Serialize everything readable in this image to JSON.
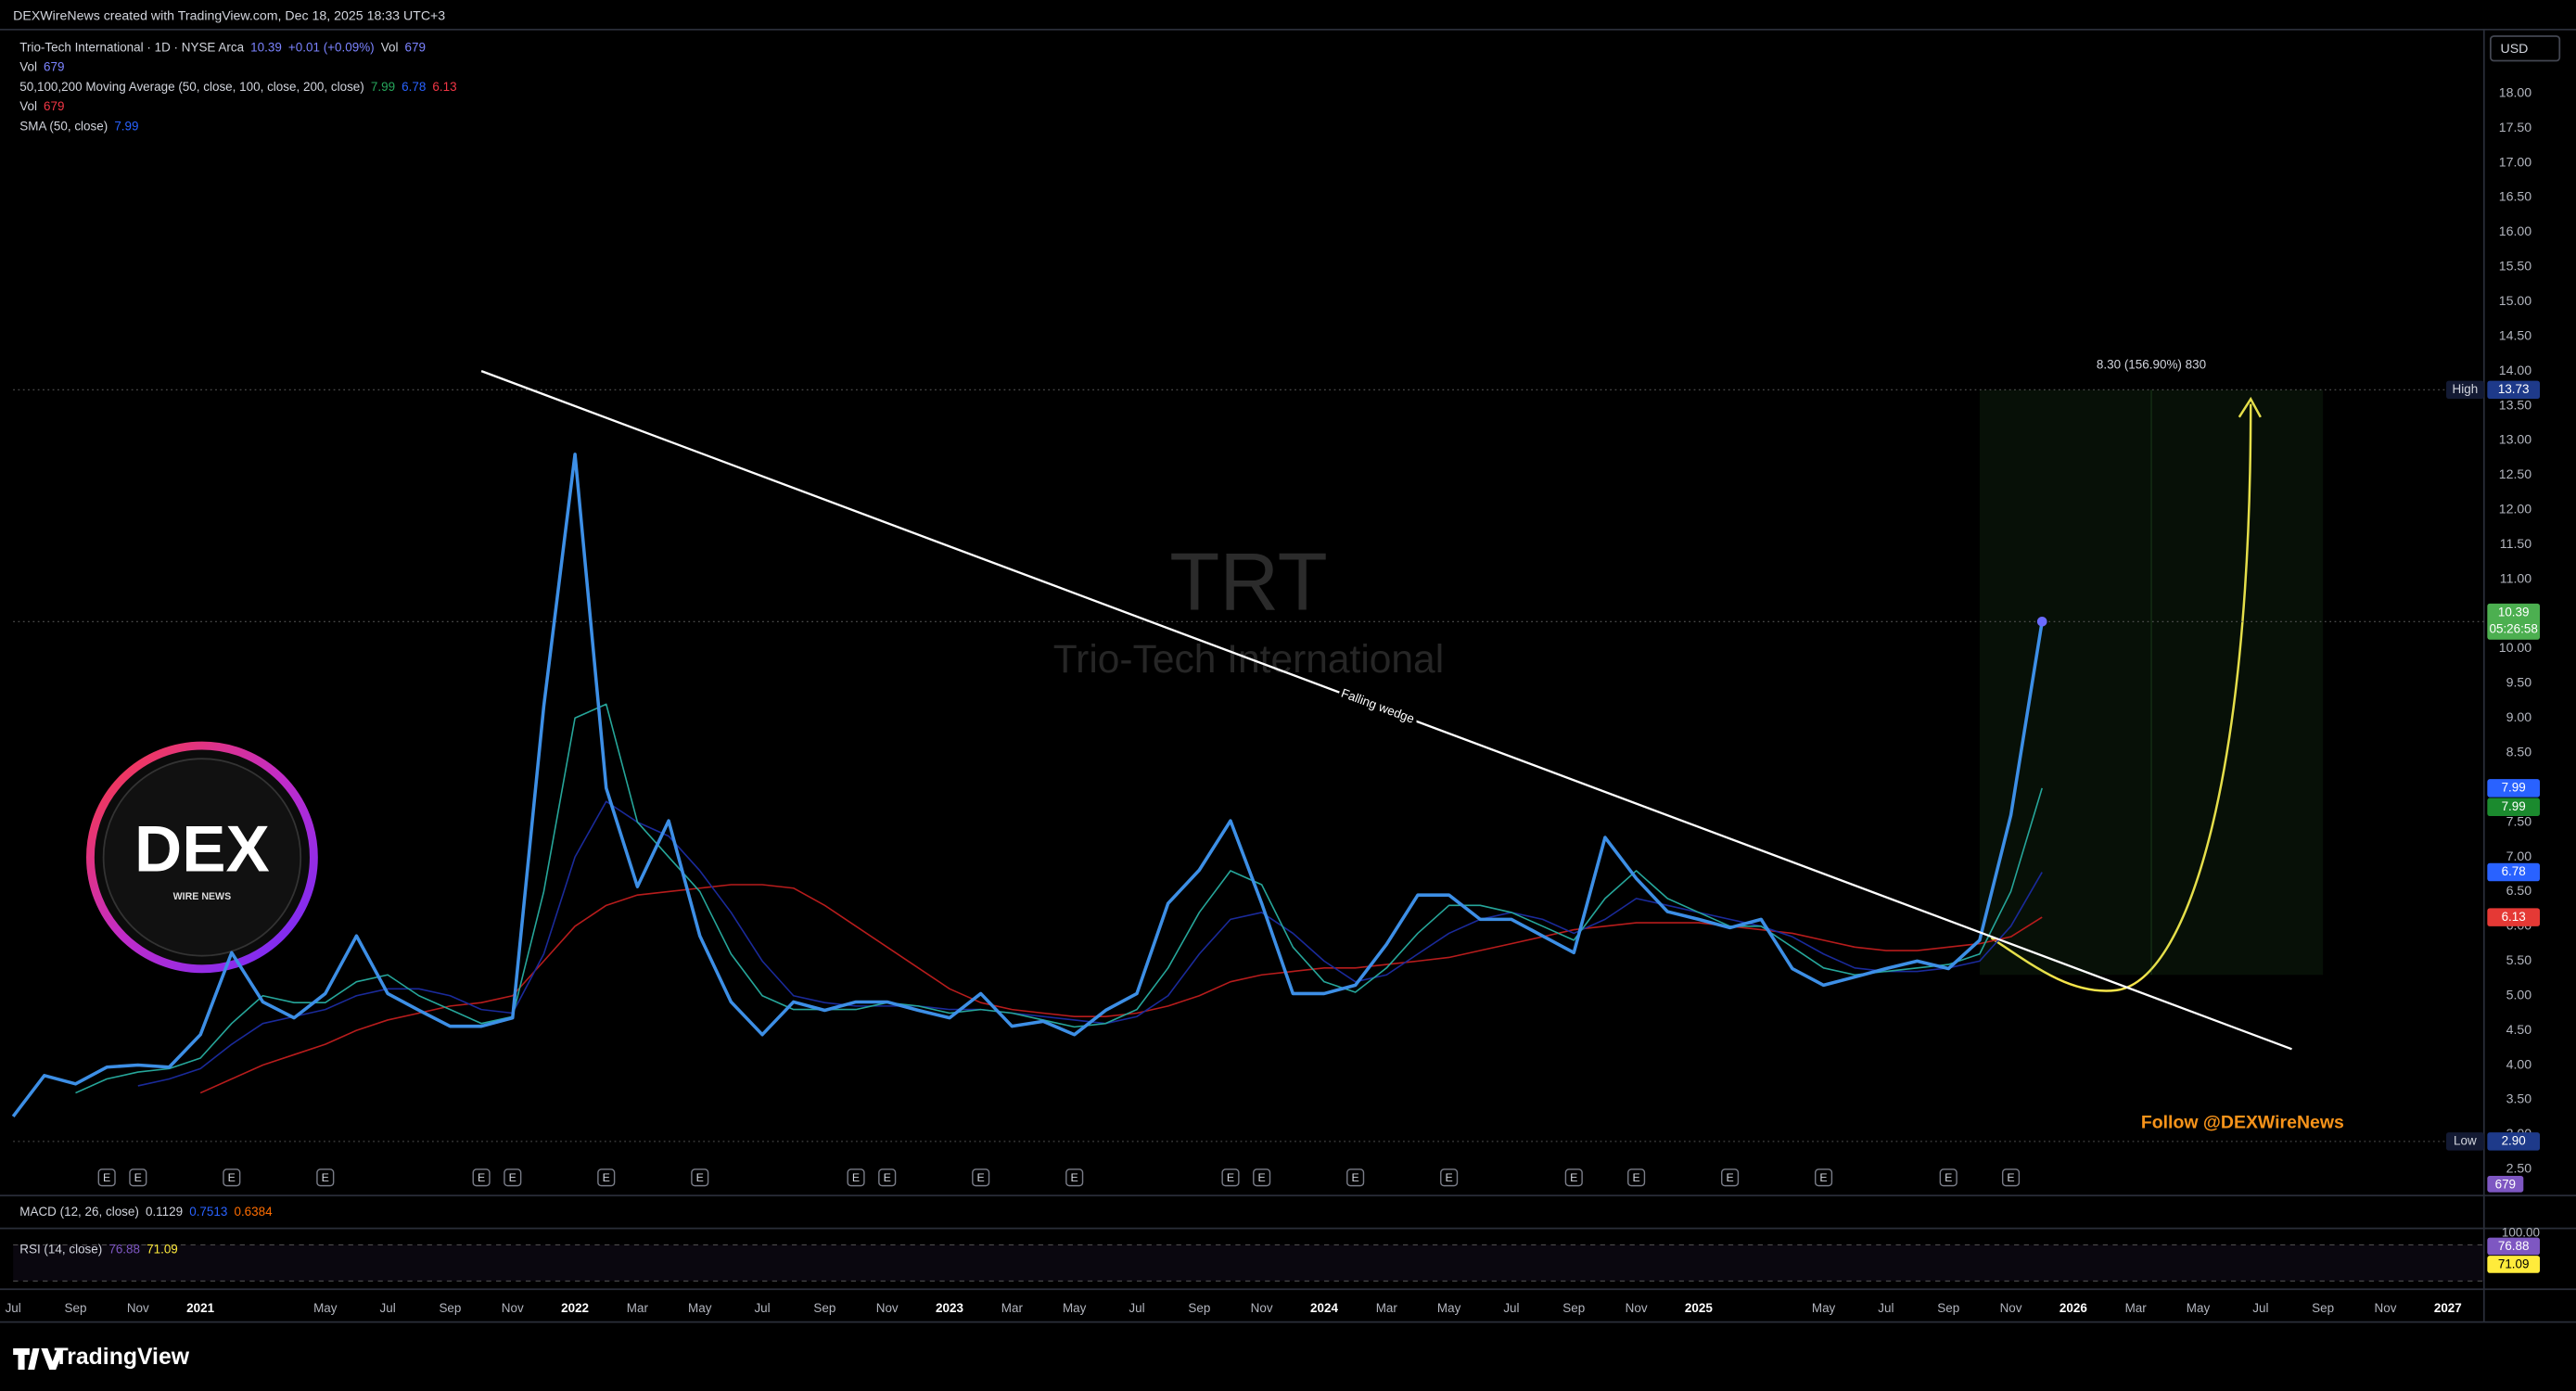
{
  "header": {
    "attribution": "DEXWireNews created with TradingView.com, Dec 18, 2025 18:33 UTC+3",
    "currency": "USD",
    "watermark_symbol": "TRT",
    "watermark_name": "Trio-Tech International",
    "follow": "Follow @DEXWireNews",
    "logo": {
      "title": "DEX",
      "subtitle": "WIRE NEWS"
    },
    "brand": "TradingView"
  },
  "legend": [
    [
      {
        "text": "Trio-Tech International · 1D · NYSE Arca",
        "color": "#d1d4dc"
      },
      {
        "text": "10.39",
        "color": "#7b83ff"
      },
      {
        "text": "+0.01 (+0.09%)",
        "color": "#7b83ff"
      },
      {
        "text": "Vol",
        "color": "#d1d4dc"
      },
      {
        "text": "679",
        "color": "#7b83ff"
      }
    ],
    [
      {
        "text": "Vol",
        "color": "#d1d4dc"
      },
      {
        "text": "679",
        "color": "#7b83ff"
      }
    ],
    [
      {
        "text": "50,100,200 Moving Average (50, close, 100, close, 200, close)",
        "color": "#d1d4dc"
      },
      {
        "text": "7.99",
        "color": "#26a65b"
      },
      {
        "text": "6.78",
        "color": "#2962ff"
      },
      {
        "text": "6.13",
        "color": "#f23645"
      }
    ],
    [
      {
        "text": "Vol",
        "color": "#d1d4dc"
      },
      {
        "text": "679",
        "color": "#f23645"
      }
    ],
    [
      {
        "text": "SMA (50, close)",
        "color": "#d1d4dc"
      },
      {
        "text": "7.99",
        "color": "#2962ff"
      }
    ]
  ],
  "macd_legend": [
    {
      "text": "MACD (12, 26, close)",
      "color": "#d1d4dc"
    },
    {
      "text": "0.1129",
      "color": "#d1d4dc"
    },
    {
      "text": "0.7513",
      "color": "#2962ff"
    },
    {
      "text": "0.6384",
      "color": "#ff6d00"
    }
  ],
  "rsi_legend": [
    {
      "text": "RSI (14, close)",
      "color": "#d1d4dc"
    },
    {
      "text": "76.88",
      "color": "#7e57c2"
    },
    {
      "text": "71.09",
      "color": "#ffeb3b"
    }
  ],
  "chart_data": {
    "type": "line",
    "x": [
      "2020-07",
      "2020-08",
      "2020-09",
      "2020-10",
      "2020-11",
      "2020-12",
      "2021-01",
      "2021-02",
      "2021-03",
      "2021-04",
      "2021-05",
      "2021-06",
      "2021-07",
      "2021-08",
      "2021-09",
      "2021-10",
      "2021-11",
      "2021-12",
      "2022-01",
      "2022-02",
      "2022-03",
      "2022-04",
      "2022-05",
      "2022-06",
      "2022-07",
      "2022-08",
      "2022-09",
      "2022-10",
      "2022-11",
      "2022-12",
      "2023-01",
      "2023-02",
      "2023-03",
      "2023-04",
      "2023-05",
      "2023-06",
      "2023-07",
      "2023-08",
      "2023-09",
      "2023-10",
      "2023-11",
      "2023-12",
      "2024-01",
      "2024-02",
      "2024-03",
      "2024-04",
      "2024-05",
      "2024-06",
      "2024-07",
      "2024-08",
      "2024-09",
      "2024-10",
      "2024-11",
      "2024-12",
      "2025-01",
      "2025-02",
      "2025-03",
      "2025-04",
      "2025-05",
      "2025-06",
      "2025-07",
      "2025-08",
      "2025-09",
      "2025-10",
      "2025-11",
      "2025-12"
    ],
    "series": [
      {
        "color": "#3d8fe6",
        "values": [
          3.26,
          3.85,
          3.73,
          3.97,
          4.0,
          3.97,
          4.44,
          5.62,
          4.91,
          4.68,
          5.03,
          5.86,
          5.03,
          4.79,
          4.56,
          4.56,
          4.68,
          9.17,
          12.8,
          7.99,
          6.57,
          7.52,
          5.86,
          4.91,
          4.44,
          4.91,
          4.79,
          4.91,
          4.91,
          4.79,
          4.68,
          5.03,
          4.56,
          4.63,
          4.44,
          4.79,
          5.03,
          6.33,
          6.81,
          7.52,
          6.33,
          5.03,
          5.03,
          5.15,
          5.74,
          6.45,
          6.45,
          6.1,
          6.1,
          5.86,
          5.62,
          7.28,
          6.69,
          6.21,
          6.1,
          5.98,
          6.1,
          5.39,
          5.15,
          5.27,
          5.39,
          5.5,
          5.39,
          5.8,
          7.6,
          10.39
        ]
      },
      {
        "color": "#26a69a",
        "values": [
          null,
          null,
          3.6,
          3.8,
          3.9,
          3.95,
          4.1,
          4.6,
          5.0,
          4.9,
          4.9,
          5.2,
          5.3,
          5.0,
          4.8,
          4.6,
          4.7,
          6.5,
          9.0,
          9.2,
          7.5,
          7.0,
          6.5,
          5.6,
          5.0,
          4.8,
          4.8,
          4.8,
          4.9,
          4.85,
          4.75,
          4.8,
          4.75,
          4.65,
          4.55,
          4.6,
          4.8,
          5.4,
          6.2,
          6.8,
          6.6,
          5.7,
          5.2,
          5.05,
          5.4,
          5.9,
          6.3,
          6.3,
          6.2,
          6.0,
          5.8,
          6.4,
          6.8,
          6.4,
          6.2,
          6.0,
          6.0,
          5.7,
          5.4,
          5.3,
          5.35,
          5.4,
          5.45,
          5.6,
          6.5,
          7.99
        ]
      },
      {
        "color": "#1a2a9a",
        "values": [
          null,
          null,
          null,
          null,
          3.7,
          3.8,
          3.95,
          4.3,
          4.6,
          4.7,
          4.8,
          5.0,
          5.1,
          5.1,
          5.0,
          4.8,
          4.75,
          5.6,
          7.0,
          7.8,
          7.5,
          7.3,
          6.8,
          6.2,
          5.5,
          5.0,
          4.9,
          4.85,
          4.85,
          4.85,
          4.8,
          4.8,
          4.75,
          4.7,
          4.65,
          4.6,
          4.7,
          5.0,
          5.6,
          6.1,
          6.2,
          5.9,
          5.5,
          5.2,
          5.3,
          5.6,
          5.9,
          6.1,
          6.2,
          6.1,
          5.9,
          6.1,
          6.4,
          6.3,
          6.2,
          6.1,
          6.0,
          5.85,
          5.6,
          5.4,
          5.35,
          5.35,
          5.4,
          5.5,
          6.0,
          6.78
        ]
      },
      {
        "color": "#b71c1c",
        "values": [
          null,
          null,
          null,
          null,
          null,
          null,
          3.6,
          3.8,
          4.0,
          4.15,
          4.3,
          4.5,
          4.65,
          4.75,
          4.85,
          4.9,
          5.0,
          5.5,
          6.0,
          6.3,
          6.45,
          6.5,
          6.55,
          6.6,
          6.6,
          6.55,
          6.3,
          6.0,
          5.7,
          5.4,
          5.1,
          4.9,
          4.8,
          4.75,
          4.7,
          4.7,
          4.75,
          4.85,
          5.0,
          5.2,
          5.3,
          5.35,
          5.4,
          5.4,
          5.45,
          5.5,
          5.55,
          5.65,
          5.75,
          5.85,
          5.95,
          6.0,
          6.05,
          6.05,
          6.05,
          6.0,
          5.95,
          5.9,
          5.8,
          5.7,
          5.65,
          5.65,
          5.7,
          5.75,
          5.85,
          6.13
        ]
      }
    ],
    "xlim": [
      "2020-07",
      "2027-02"
    ],
    "xticks": [
      {
        "value": "2020-07",
        "label": "Jul"
      },
      {
        "value": "2020-09",
        "label": "Sep"
      },
      {
        "value": "2020-11",
        "label": "Nov"
      },
      {
        "value": "2021-01",
        "label": "2021"
      },
      {
        "value": "2021-05",
        "label": "May"
      },
      {
        "value": "2021-07",
        "label": "Jul"
      },
      {
        "value": "2021-09",
        "label": "Sep"
      },
      {
        "value": "2021-11",
        "label": "Nov"
      },
      {
        "value": "2022-01",
        "label": "2022"
      },
      {
        "value": "2022-03",
        "label": "Mar"
      },
      {
        "value": "2022-05",
        "label": "May"
      },
      {
        "value": "2022-07",
        "label": "Jul"
      },
      {
        "value": "2022-09",
        "label": "Sep"
      },
      {
        "value": "2022-11",
        "label": "Nov"
      },
      {
        "value": "2023-01",
        "label": "2023"
      },
      {
        "value": "2023-03",
        "label": "Mar"
      },
      {
        "value": "2023-05",
        "label": "May"
      },
      {
        "value": "2023-07",
        "label": "Jul"
      },
      {
        "value": "2023-09",
        "label": "Sep"
      },
      {
        "value": "2023-11",
        "label": "Nov"
      },
      {
        "value": "2024-01",
        "label": "2024"
      },
      {
        "value": "2024-03",
        "label": "Mar"
      },
      {
        "value": "2024-05",
        "label": "May"
      },
      {
        "value": "2024-07",
        "label": "Jul"
      },
      {
        "value": "2024-09",
        "label": "Sep"
      },
      {
        "value": "2024-11",
        "label": "Nov"
      },
      {
        "value": "2025-01",
        "label": "2025"
      },
      {
        "value": "2025-05",
        "label": "May"
      },
      {
        "value": "2025-07",
        "label": "Jul"
      },
      {
        "value": "2025-09",
        "label": "Sep"
      },
      {
        "value": "2025-11",
        "label": "Nov"
      },
      {
        "value": "2026-01",
        "label": "2026"
      },
      {
        "value": "2026-03",
        "label": "Mar"
      },
      {
        "value": "2026-05",
        "label": "May"
      },
      {
        "value": "2026-07",
        "label": "Jul"
      },
      {
        "value": "2026-09",
        "label": "Sep"
      },
      {
        "value": "2026-11",
        "label": "Nov"
      },
      {
        "value": "2027-01",
        "label": "2027"
      }
    ],
    "ylim": [
      2.12,
      18.92
    ],
    "yticks": [
      {
        "value": 2.5,
        "label": "2.50"
      },
      {
        "value": 3,
        "label": "3.00"
      },
      {
        "value": 3.5,
        "label": "3.50"
      },
      {
        "value": 4,
        "label": "4.00"
      },
      {
        "value": 4.5,
        "label": "4.50"
      },
      {
        "value": 5,
        "label": "5.00"
      },
      {
        "value": 5.5,
        "label": "5.50"
      },
      {
        "value": 6,
        "label": "6.00"
      },
      {
        "value": 6.5,
        "label": "6.50"
      },
      {
        "value": 7,
        "label": "7.00"
      },
      {
        "value": 7.5,
        "label": "7.50"
      },
      {
        "value": 8,
        "label": "8.00"
      },
      {
        "value": 8.5,
        "label": "8.50"
      },
      {
        "value": 9,
        "label": "9.00"
      },
      {
        "value": 9.5,
        "label": "9.50"
      },
      {
        "value": 10,
        "label": "10.00"
      },
      {
        "value": 10.5,
        "label": "10.50"
      },
      {
        "value": 11,
        "label": "11.00"
      },
      {
        "value": 11.5,
        "label": "11.50"
      },
      {
        "value": 12,
        "label": "12.00"
      },
      {
        "value": 12.5,
        "label": "12.50"
      },
      {
        "value": 13,
        "label": "13.00"
      },
      {
        "value": 13.5,
        "label": "13.50"
      },
      {
        "value": 14,
        "label": "14.00"
      },
      {
        "value": 14.5,
        "label": "14.50"
      },
      {
        "value": 15,
        "label": "15.00"
      },
      {
        "value": 15.5,
        "label": "15.50"
      },
      {
        "value": 16,
        "label": "16.00"
      },
      {
        "value": 16.5,
        "label": "16.50"
      },
      {
        "value": 17,
        "label": "17.00"
      },
      {
        "value": 17.5,
        "label": "17.50"
      },
      {
        "value": 18,
        "label": "18.00"
      }
    ],
    "price_tags": [
      {
        "name": "High",
        "value": 13.73,
        "color": "#1e3a8a",
        "line": true
      },
      {
        "value": 10.39,
        "sub": "05:26:58",
        "color": "#4caf50",
        "line": true
      },
      {
        "value": 7.99,
        "color": "#2962ff"
      },
      {
        "value": 7.99,
        "color": "#1b8a2e"
      },
      {
        "value": 6.78,
        "color": "#2962ff"
      },
      {
        "value": 6.13,
        "color": "#e53935"
      },
      {
        "name": "Low",
        "value": 2.9,
        "value_label": "2.90",
        "color": "#1e3a8a",
        "line": true
      }
    ],
    "volume_tag": {
      "value": 679,
      "color": "#7e57c2"
    },
    "trendline": {
      "label": "Falling wedge",
      "x": [
        "2021-10",
        "2026-08"
      ],
      "values": [
        14.0,
        4.23
      ]
    },
    "target": {
      "label": "8.30 (156.90%) 830",
      "x": [
        "2025-10",
        "2026-09"
      ],
      "values": [
        5.3,
        13.73
      ]
    },
    "earnings": {
      "label": "E",
      "x": [
        "2020-10",
        "2020-11",
        "2021-02",
        "2021-05",
        "2021-10",
        "2021-11",
        "2022-02",
        "2022-05",
        "2022-10",
        "2022-11",
        "2023-02",
        "2023-05",
        "2023-10",
        "2023-11",
        "2024-02",
        "2024-05",
        "2024-09",
        "2024-11",
        "2025-02",
        "2025-05",
        "2025-09",
        "2025-11"
      ]
    },
    "rsi": {
      "ylim": [
        0,
        100
      ],
      "yticks": [
        {
          "value": 100,
          "label": "100.00"
        }
      ],
      "tags": [
        {
          "value": 76.88,
          "color": "#7e57c2"
        },
        {
          "value": 71.09,
          "color": "#ffeb3b"
        }
      ]
    }
  }
}
